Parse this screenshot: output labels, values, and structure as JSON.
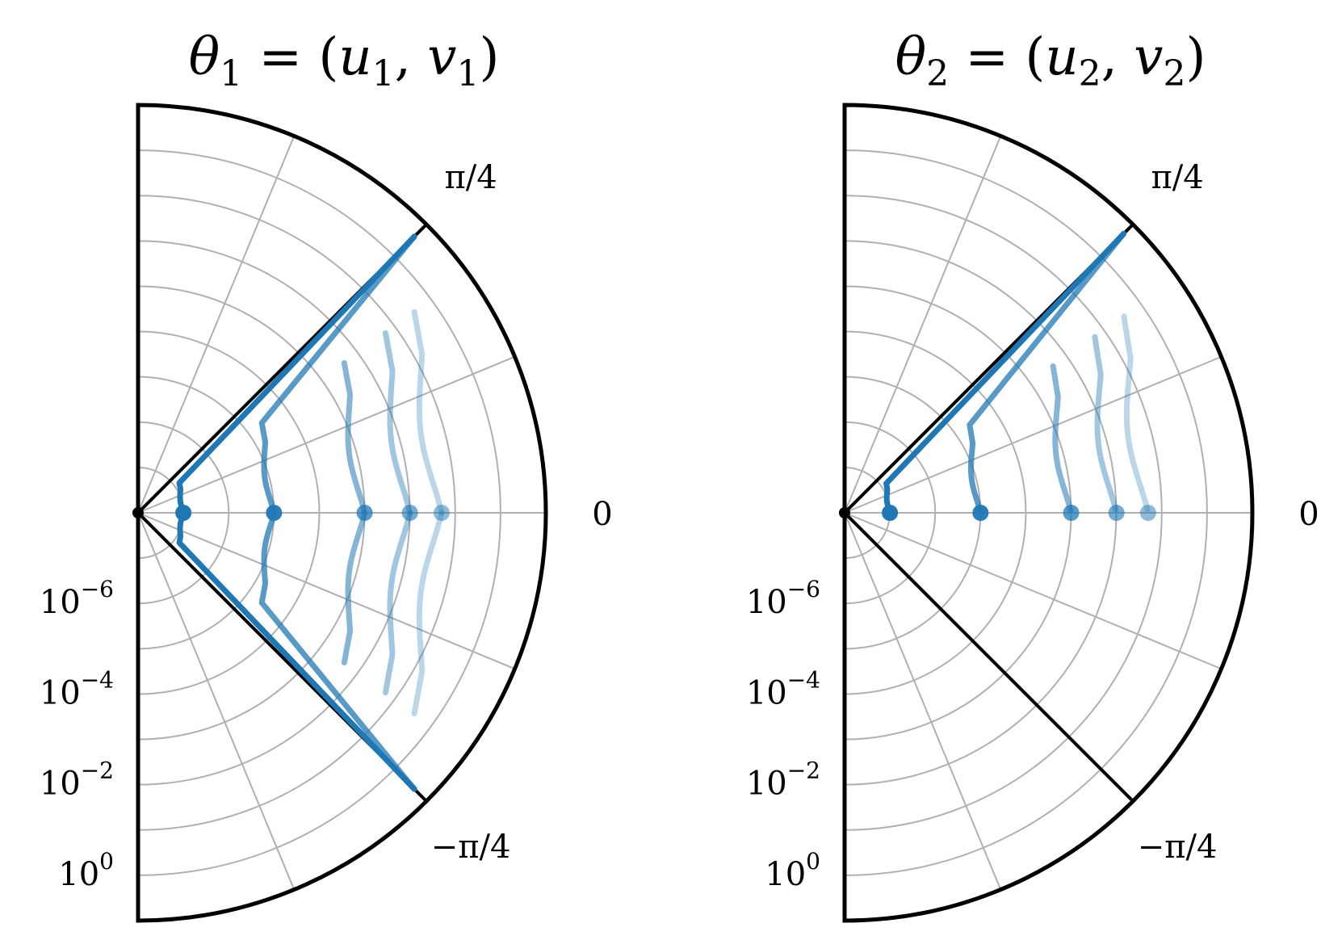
{
  "chart_data": [
    {
      "type": "polar",
      "title": {
        "theta": "θ",
        "sub": "1",
        "eq": " = (",
        "u": "u",
        "usub": "1",
        "comma": ", ",
        "v": "v",
        "vsub": "1",
        "close": ")"
      },
      "theta_range_rad": [
        -1.5707963,
        1.5707963
      ],
      "radial_scale": "log",
      "radial_range": [
        1e-08,
        10.0
      ],
      "angle_tick_labels": [
        "π/4",
        "0",
        "−π/4"
      ],
      "radial_tick_labels": [
        {
          "base": "10",
          "exp": "−6"
        },
        {
          "base": "10",
          "exp": "−4"
        },
        {
          "base": "10",
          "exp": "−2"
        },
        {
          "base": "10",
          "exp": "0"
        }
      ],
      "grid": true,
      "color": "#1f77b4",
      "curves": [
        {
          "alpha": 1.0,
          "start_r": 1e-07
        },
        {
          "alpha": 0.75,
          "start_r": 1e-05
        },
        {
          "alpha": 0.55,
          "start_r": 0.001
        },
        {
          "alpha": 0.42,
          "start_r": 0.01
        },
        {
          "alpha": 0.3,
          "start_r": 0.05
        }
      ]
    },
    {
      "type": "polar",
      "title": {
        "theta": "θ",
        "sub": "2",
        "eq": " = (",
        "u": "u",
        "usub": "2",
        "comma": ", ",
        "v": "v",
        "vsub": "2",
        "close": ")"
      },
      "theta_range_rad": [
        -1.5707963,
        1.5707963
      ],
      "radial_scale": "log",
      "radial_range": [
        1e-08,
        10.0
      ],
      "angle_tick_labels": [
        "π/4",
        "0",
        "−π/4"
      ],
      "radial_tick_labels": [
        {
          "base": "10",
          "exp": "−6"
        },
        {
          "base": "10",
          "exp": "−4"
        },
        {
          "base": "10",
          "exp": "−2"
        },
        {
          "base": "10",
          "exp": "0"
        }
      ],
      "grid": true,
      "color": "#1f77b4",
      "curves": [
        {
          "alpha": 1.0,
          "start_r": 1e-07
        },
        {
          "alpha": 0.75,
          "start_r": 1e-05
        },
        {
          "alpha": 0.55,
          "start_r": 0.001
        },
        {
          "alpha": 0.42,
          "start_r": 0.01
        },
        {
          "alpha": 0.3,
          "start_r": 0.05
        }
      ]
    }
  ]
}
